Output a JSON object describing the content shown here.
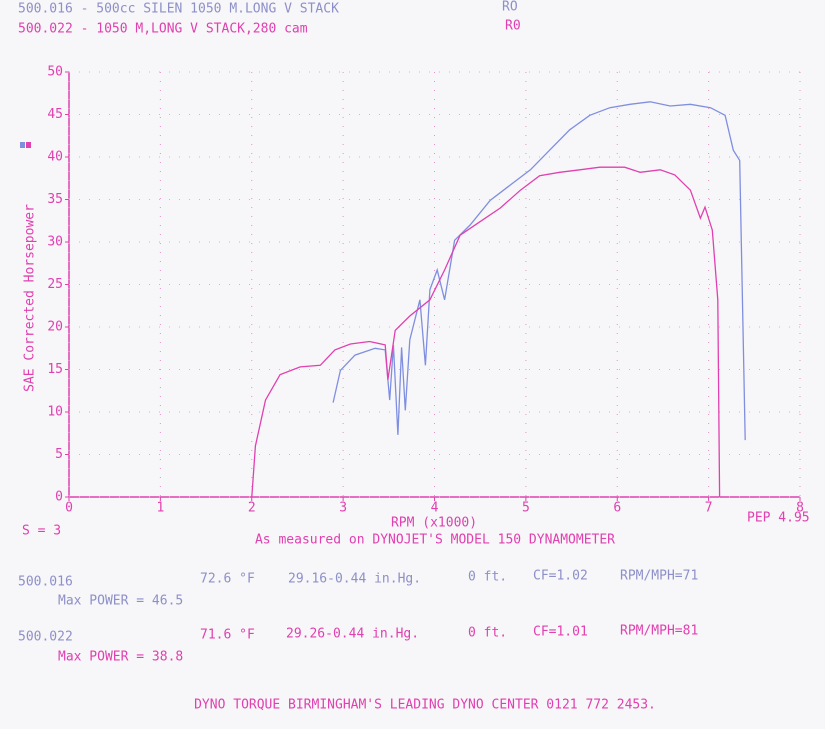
{
  "chart_data": {
    "type": "line",
    "xlabel": "RPM (x1000)",
    "ylabel": "SAE Corrected Horsepower",
    "xlim": [
      0,
      8
    ],
    "xticks": [
      0,
      1,
      2,
      3,
      4,
      5,
      6,
      7,
      8
    ],
    "ylim": [
      0,
      50
    ],
    "yticks": [
      0,
      5,
      10,
      15,
      20,
      25,
      30,
      35,
      40,
      45,
      50
    ],
    "grid": true,
    "series": [
      {
        "name": "500.016 - 500cc SILEN 1050 M.LONG V STACK",
        "tag": "RO",
        "color": "#7f8fe0",
        "x": [
          2.89,
          2.97,
          3.13,
          3.35,
          3.46,
          3.51,
          3.55,
          3.6,
          3.64,
          3.68,
          3.73,
          3.84,
          3.9,
          3.95,
          4.03,
          4.11,
          4.22,
          4.39,
          4.61,
          4.83,
          5.05,
          5.26,
          5.48,
          5.7,
          5.92,
          6.14,
          6.36,
          6.58,
          6.8,
          7.02,
          7.18,
          7.27,
          7.34,
          7.4
        ],
        "values": [
          11.1,
          14.9,
          16.7,
          17.5,
          17.3,
          11.4,
          17.9,
          7.3,
          17.6,
          10.2,
          18.5,
          23.2,
          15.5,
          24.4,
          26.7,
          23.2,
          30.2,
          32.0,
          34.9,
          36.7,
          38.5,
          40.8,
          43.2,
          44.9,
          45.8,
          46.2,
          46.5,
          46.0,
          46.2,
          45.8,
          44.9,
          40.8,
          39.6,
          6.7
        ]
      },
      {
        "name": "500.022 - 1050 M,LONG V STACK,280 cam",
        "tag": "R0",
        "color": "#e040b0",
        "x": [
          2.0,
          2.04,
          2.15,
          2.31,
          2.53,
          2.75,
          2.91,
          3.08,
          3.29,
          3.46,
          3.49,
          3.57,
          3.73,
          3.95,
          4.11,
          4.28,
          4.5,
          4.72,
          4.94,
          5.15,
          5.37,
          5.59,
          5.81,
          6.08,
          6.25,
          6.47,
          6.63,
          6.8,
          6.91,
          6.96,
          7.04,
          7.1,
          7.12
        ],
        "values": [
          0,
          6.0,
          11.4,
          14.4,
          15.3,
          15.5,
          17.3,
          18.0,
          18.3,
          17.9,
          13.8,
          19.6,
          21.3,
          23.2,
          26.7,
          30.8,
          32.4,
          34.0,
          36.1,
          37.8,
          38.2,
          38.5,
          38.8,
          38.8,
          38.2,
          38.5,
          37.9,
          36.1,
          32.8,
          34.1,
          31.4,
          23.2,
          0
        ]
      }
    ]
  },
  "smoothing": "S = 3",
  "pep": "PEP 4.95",
  "dyno_note": "As measured on DYNOJET'S MODEL 150 DYNAMOMETER",
  "runs": [
    {
      "id": "500.016",
      "temp": "72.6 °F",
      "pressure": "29.16-0.44 in.Hg.",
      "altitude": "0 ft.",
      "cf": "CF=1.02",
      "ratio": "RPM/MPH=71",
      "max_power": "Max POWER = 46.5"
    },
    {
      "id": "500.022",
      "temp": "71.6 °F",
      "pressure": "29.26-0.44 in.Hg.",
      "altitude": "0 ft.",
      "cf": "CF=1.01",
      "ratio": "RPM/MPH=81",
      "max_power": "Max POWER = 38.8"
    }
  ],
  "footer": "DYNO TORQUE BIRMINGHAM'S LEADING DYNO CENTER 0121 772 2453."
}
